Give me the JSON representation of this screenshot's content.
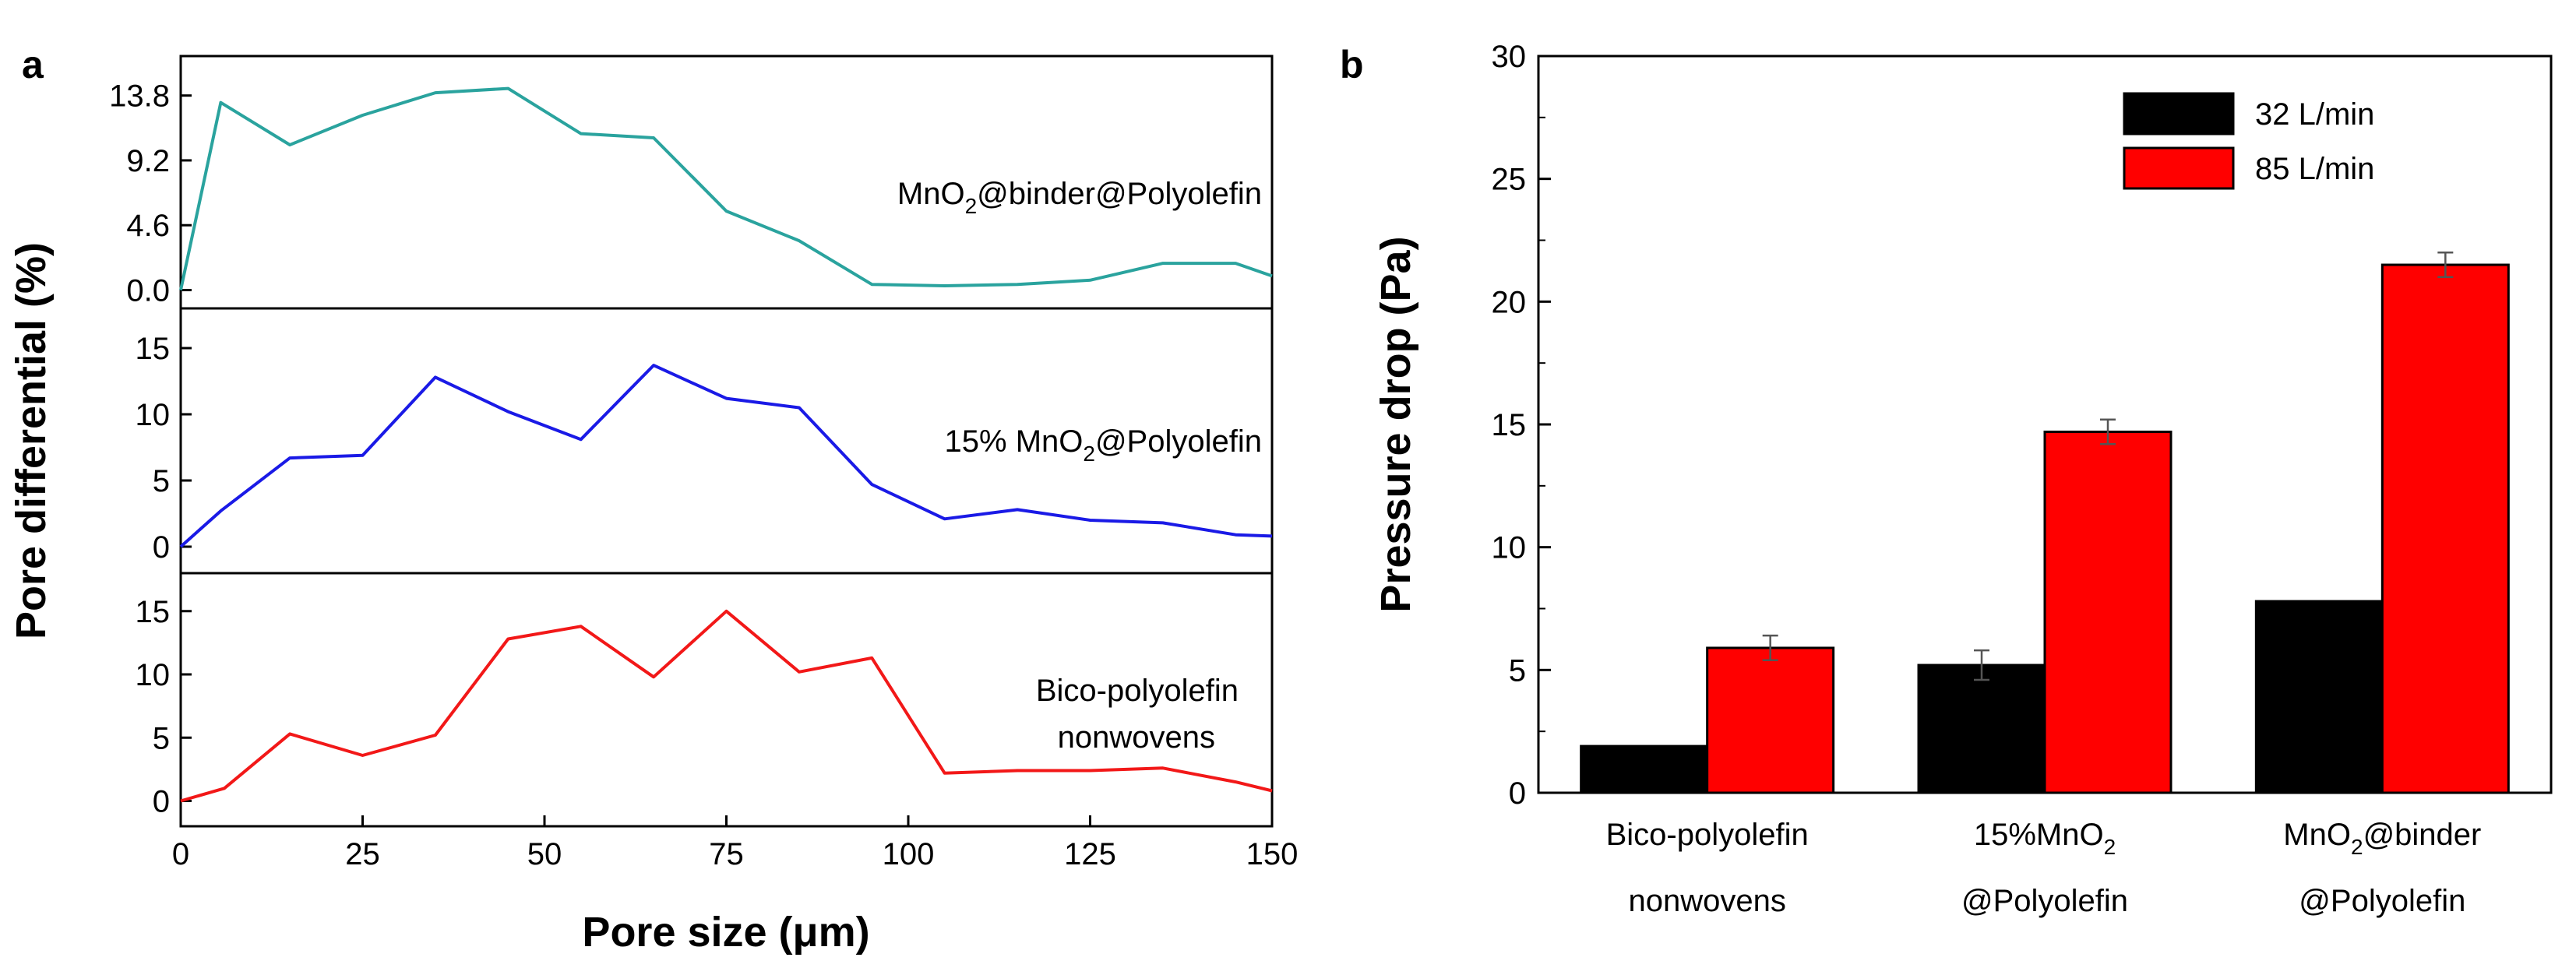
{
  "chart_data": [
    {
      "panel": "a",
      "type": "line",
      "xlabel": "Pore size (μm)",
      "ylabel": "Pore differential (%)",
      "xlim": [
        0,
        150
      ],
      "xticks": [
        "0",
        "25",
        "50",
        "75",
        "100",
        "125",
        "150"
      ],
      "subplots": [
        {
          "name": "MnO₂@binder@Polyolefin",
          "label_main": "MnO",
          "label_sub": "2",
          "label_rest": "@binder@Polyolefin",
          "color": "#2aa39e",
          "ylim": [
            -1.3,
            16.6
          ],
          "yticks": [
            "0.0",
            "4.6",
            "9.2",
            "13.8"
          ],
          "x": [
            0,
            5.5,
            15,
            25,
            35,
            45,
            55,
            65,
            75,
            85,
            95,
            105,
            115,
            125,
            135,
            145,
            150
          ],
          "y": [
            0.0,
            13.3,
            10.3,
            12.4,
            14.0,
            14.3,
            11.1,
            10.8,
            5.6,
            3.5,
            0.4,
            0.3,
            0.4,
            0.7,
            1.9,
            1.9,
            1.0
          ]
        },
        {
          "name": "15% MnO₂@Polyolefin",
          "label_main": "15% MnO",
          "label_sub": "2",
          "label_rest": "@Polyolefin",
          "color": "#1a1ae6",
          "ylim": [
            -2,
            18
          ],
          "yticks": [
            "0",
            "5",
            "10",
            "15"
          ],
          "x": [
            0,
            5.5,
            15,
            25,
            35,
            45,
            55,
            65,
            75,
            85,
            95,
            105,
            115,
            125,
            135,
            145,
            150
          ],
          "y": [
            0.0,
            2.7,
            6.7,
            6.9,
            12.8,
            10.2,
            8.1,
            13.7,
            11.2,
            10.5,
            4.7,
            2.1,
            2.8,
            2.0,
            1.8,
            0.9,
            0.8
          ]
        },
        {
          "name": "Bico-polyolefin nonwovens",
          "label_main": "Bico-polyolefin",
          "label_line2": "nonwovens",
          "color": "#f21818",
          "ylim": [
            -2,
            18
          ],
          "yticks": [
            "0",
            "5",
            "10",
            "15"
          ],
          "x": [
            0,
            6,
            15,
            25,
            35,
            45,
            55,
            65,
            75,
            85,
            95,
            105,
            115,
            125,
            135,
            145,
            150
          ],
          "y": [
            0.0,
            1.0,
            5.3,
            3.6,
            5.2,
            12.8,
            13.8,
            9.8,
            15.0,
            10.2,
            11.3,
            2.2,
            2.4,
            2.4,
            2.6,
            1.5,
            0.8
          ]
        }
      ]
    },
    {
      "panel": "b",
      "type": "bar",
      "ylabel": "Pressure drop (Pa)",
      "ylim": [
        0,
        30
      ],
      "yticks": [
        "0",
        "5",
        "10",
        "15",
        "20",
        "25",
        "30"
      ],
      "categories": [
        {
          "line1_main": "Bico-polyolefin",
          "line1_sub": "",
          "line2": "nonwovens"
        },
        {
          "line1_main": "15%MnO",
          "line1_sub": "2",
          "line2": "@Polyolefin"
        },
        {
          "line1_main": "MnO",
          "line1_sub": "2",
          "line1_rest": "@binder",
          "line2": "@Polyolefin"
        }
      ],
      "series": [
        {
          "name": "32 L/min",
          "color": "#000000",
          "values": [
            1.9,
            5.2,
            7.8
          ],
          "errors": [
            0,
            0.6,
            0
          ]
        },
        {
          "name": "85 L/min",
          "color": "#ff0000",
          "values": [
            5.9,
            14.7,
            21.5
          ],
          "errors": [
            0.5,
            0.5,
            0.5
          ]
        }
      ]
    }
  ],
  "panel_letters": {
    "a": "a",
    "b": "b"
  }
}
